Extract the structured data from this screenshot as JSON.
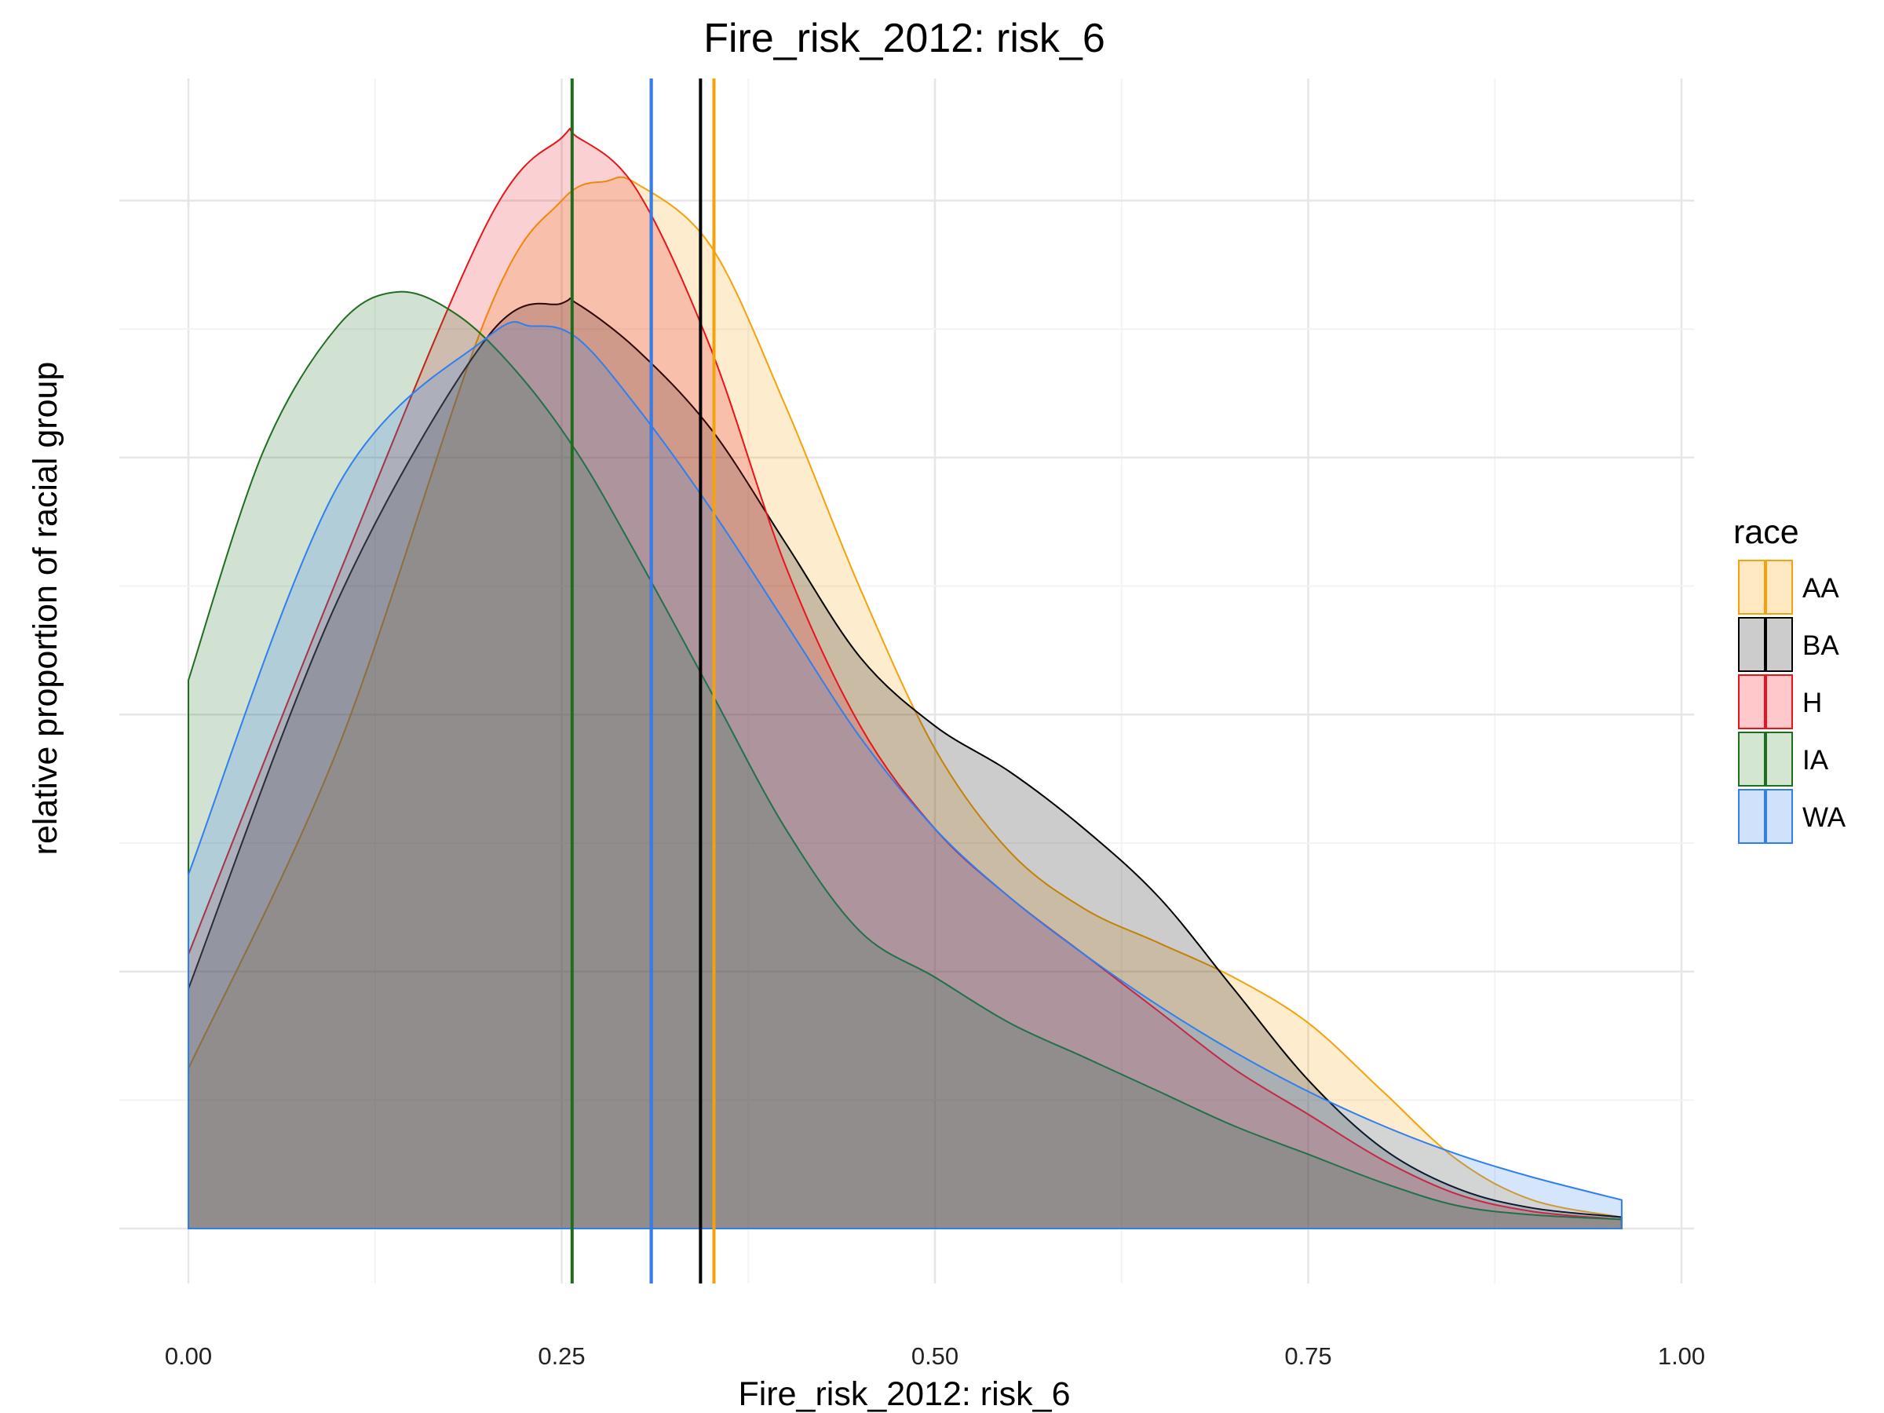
{
  "chart_data": {
    "type": "area",
    "title": "Fire_risk_2012: risk_6",
    "xlabel": "Fire_risk_2012: risk_6",
    "ylabel": "relative proportion of racial group",
    "xlim": [
      0.0,
      1.0
    ],
    "ylim": [
      0,
      1.0
    ],
    "x_ticks": [
      "0.00",
      "0.25",
      "0.50",
      "0.75",
      "1.00"
    ],
    "grid": true,
    "legend": {
      "title": "race",
      "position": "right"
    },
    "series": [
      {
        "name": "AA",
        "color": "#F5A20A",
        "fill": "#FFE8C2",
        "mean": 0.352,
        "x": [
          0.0,
          0.1,
          0.2,
          0.25,
          0.28,
          0.3,
          0.35,
          0.4,
          0.45,
          0.5,
          0.55,
          0.6,
          0.65,
          0.7,
          0.75,
          0.8,
          0.85,
          0.9,
          0.96
        ],
        "y": [
          0.14,
          0.42,
          0.8,
          0.9,
          0.917,
          0.915,
          0.86,
          0.72,
          0.56,
          0.42,
          0.33,
          0.28,
          0.25,
          0.22,
          0.18,
          0.12,
          0.06,
          0.025,
          0.01
        ]
      },
      {
        "name": "BA",
        "color": "#000000",
        "fill": "#CCCCCC",
        "mean": 0.343,
        "x": [
          0.0,
          0.1,
          0.2,
          0.25,
          0.26,
          0.3,
          0.35,
          0.4,
          0.45,
          0.5,
          0.55,
          0.6,
          0.65,
          0.7,
          0.75,
          0.8,
          0.85,
          0.9,
          0.96
        ],
        "y": [
          0.21,
          0.55,
          0.78,
          0.81,
          0.81,
          0.77,
          0.7,
          0.6,
          0.5,
          0.44,
          0.4,
          0.35,
          0.29,
          0.21,
          0.13,
          0.07,
          0.035,
          0.018,
          0.01
        ]
      },
      {
        "name": "H",
        "color": "#E8141C",
        "fill": "#FFC8CB",
        "mean": 0.31,
        "x": [
          0.0,
          0.1,
          0.2,
          0.25,
          0.26,
          0.3,
          0.35,
          0.4,
          0.45,
          0.5,
          0.55,
          0.6,
          0.65,
          0.7,
          0.75,
          0.8,
          0.85,
          0.9,
          0.96
        ],
        "y": [
          0.24,
          0.57,
          0.88,
          0.955,
          0.956,
          0.91,
          0.77,
          0.58,
          0.44,
          0.35,
          0.29,
          0.24,
          0.19,
          0.14,
          0.1,
          0.06,
          0.03,
          0.015,
          0.008
        ]
      },
      {
        "name": "IA",
        "color": "#1E6E1E",
        "fill": "#D2E6D2",
        "mean": 0.257,
        "x": [
          0.0,
          0.05,
          0.1,
          0.14,
          0.18,
          0.22,
          0.26,
          0.3,
          0.35,
          0.4,
          0.45,
          0.5,
          0.55,
          0.6,
          0.65,
          0.7,
          0.75,
          0.8,
          0.85,
          0.9,
          0.96
        ],
        "y": [
          0.48,
          0.68,
          0.79,
          0.82,
          0.8,
          0.75,
          0.68,
          0.59,
          0.47,
          0.35,
          0.26,
          0.22,
          0.18,
          0.15,
          0.12,
          0.09,
          0.065,
          0.04,
          0.02,
          0.012,
          0.008
        ]
      },
      {
        "name": "WA",
        "color": "#2F7FEF",
        "fill": "#CFE1FB",
        "mean": 0.31,
        "x": [
          0.0,
          0.1,
          0.2,
          0.23,
          0.26,
          0.3,
          0.35,
          0.4,
          0.45,
          0.5,
          0.55,
          0.6,
          0.65,
          0.7,
          0.75,
          0.8,
          0.85,
          0.9,
          0.96
        ],
        "y": [
          0.31,
          0.65,
          0.78,
          0.79,
          0.78,
          0.72,
          0.63,
          0.53,
          0.43,
          0.35,
          0.29,
          0.24,
          0.195,
          0.155,
          0.12,
          0.09,
          0.065,
          0.045,
          0.025
        ]
      }
    ]
  }
}
